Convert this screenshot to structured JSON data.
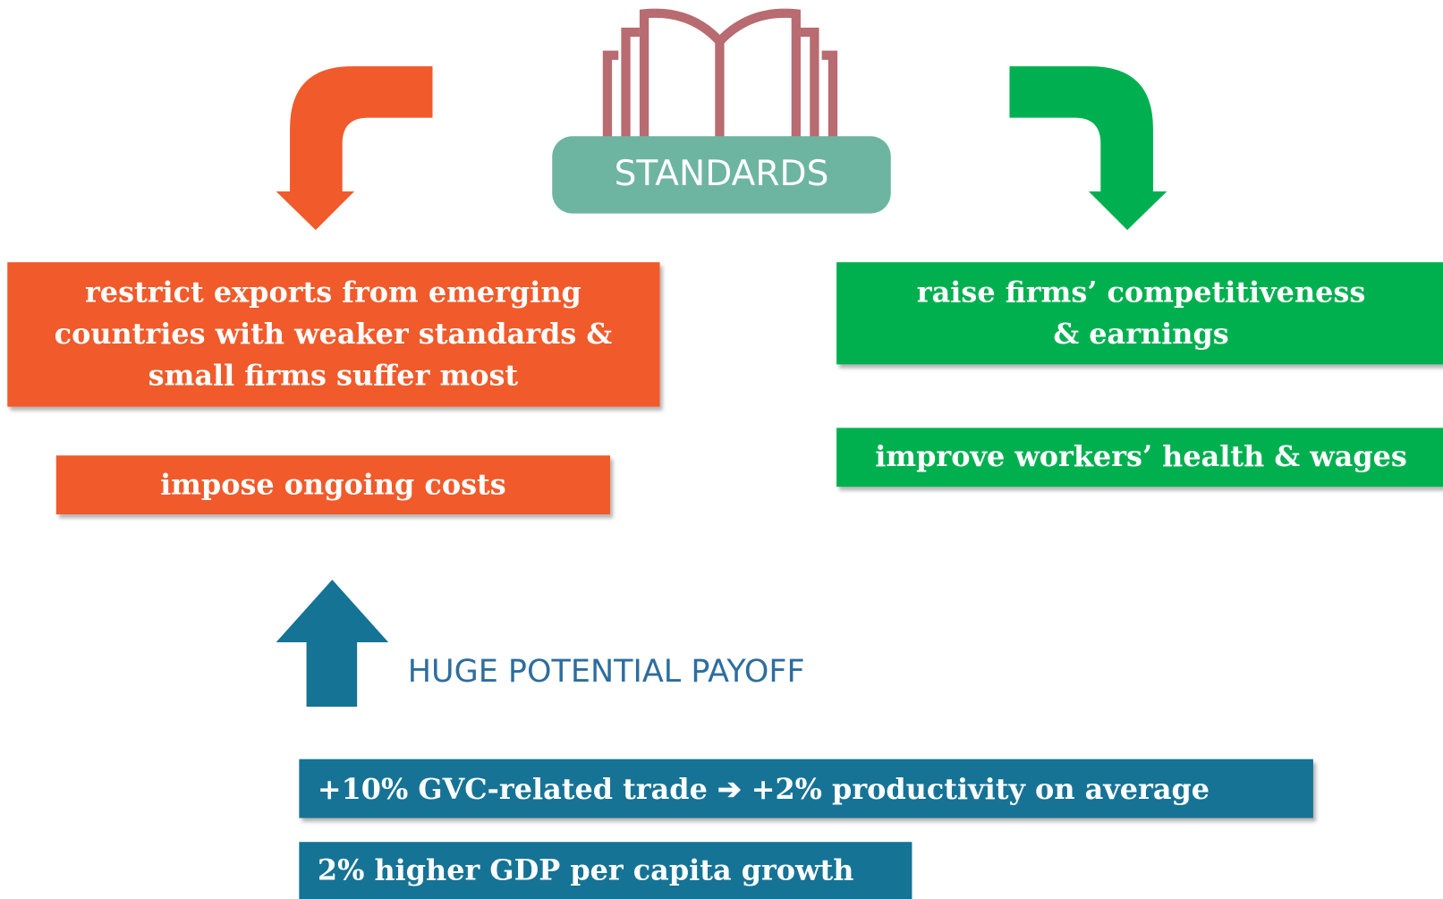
{
  "standards": "STANDARDS",
  "negatives": [
    {
      "lines": [
        "restrict exports from emerging",
        "countries with weaker standards &",
        "small firms suffer most"
      ]
    },
    {
      "lines": [
        "impose ongoing costs"
      ]
    }
  ],
  "positives": [
    {
      "lines": [
        "raise firms’ competitiveness",
        "& earnings"
      ]
    },
    {
      "lines": [
        "improve workers’ health & wages"
      ]
    }
  ],
  "payoff": {
    "heading": "HUGE POTENTIAL PAYOFF",
    "items": [
      "+10% GVC-related trade ➔ +2% productivity on average",
      "2% higher GDP per capita growth"
    ]
  }
}
